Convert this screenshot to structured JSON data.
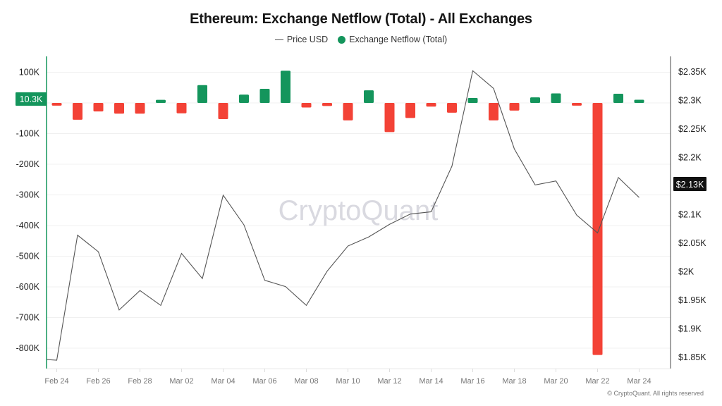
{
  "title": "Ethereum: Exchange Netflow (Total) - All Exchanges",
  "legend": {
    "price_label": "Price USD",
    "netflow_label": "Exchange Netflow (Total)"
  },
  "colors": {
    "positive": "#14955c",
    "negative": "#f34236",
    "price_line": "#555555",
    "left_axis": "#14955c",
    "right_axis": "#666666",
    "grid": "#f0f0f0",
    "watermark": "#d9d9e0"
  },
  "watermark": "CryptoQuant",
  "copyright": "© CryptoQuant. All rights reserved",
  "left_marker": "10.3K",
  "right_marker": "$2.13K",
  "chart_data": {
    "type": "bar+line",
    "title": "Ethereum: Exchange Netflow (Total) - All Exchanges",
    "xlabel": "",
    "ylabel_left": "Exchange Netflow (Total)",
    "ylabel_right": "Price USD",
    "x_tick_labels": [
      "Feb 24",
      "Feb 26",
      "Feb 28",
      "Mar 02",
      "Mar 04",
      "Mar 06",
      "Mar 08",
      "Mar 10",
      "Mar 12",
      "Mar 14",
      "Mar 16",
      "Mar 18",
      "Mar 20",
      "Mar 22",
      "Mar 24"
    ],
    "left_ticks": [
      "100K",
      "0",
      "-100K",
      "-200K",
      "-300K",
      "-400K",
      "-500K",
      "-600K",
      "-700K",
      "-800K"
    ],
    "left_tick_values": [
      100000,
      0,
      -100000,
      -200000,
      -300000,
      -400000,
      -500000,
      -600000,
      -700000,
      -800000
    ],
    "right_ticks": [
      "$2.35K",
      "$2.3K",
      "$2.25K",
      "$2.2K",
      "$2.15K",
      "$2.1K",
      "$2.05K",
      "$2K",
      "$1.95K",
      "$1.9K",
      "$1.85K"
    ],
    "right_tick_values": [
      2350,
      2300,
      2250,
      2200,
      2150,
      2100,
      2050,
      2000,
      1950,
      1900,
      1850
    ],
    "ylim_left": [
      -880000,
      150000
    ],
    "ylim_right": [
      1820,
      2380
    ],
    "legend_position": "top",
    "grid": true,
    "categories": [
      "Feb 24",
      "Feb 25",
      "Feb 26",
      "Feb 27",
      "Feb 28",
      "Mar 01",
      "Mar 02",
      "Mar 03",
      "Mar 04",
      "Mar 05",
      "Mar 06",
      "Mar 07",
      "Mar 08",
      "Mar 09",
      "Mar 10",
      "Mar 11",
      "Mar 12",
      "Mar 13",
      "Mar 14",
      "Mar 15",
      "Mar 16",
      "Mar 17",
      "Mar 18",
      "Mar 19",
      "Mar 20",
      "Mar 21",
      "Mar 22",
      "Mar 23",
      "Mar 24"
    ],
    "series": [
      {
        "name": "Exchange Netflow (Total)",
        "type": "bar",
        "values": [
          -9000,
          -55000,
          -28000,
          -35000,
          -35000,
          10000,
          -34000,
          58000,
          -53000,
          27000,
          46000,
          105000,
          -15000,
          -10000,
          -57000,
          41000,
          -95000,
          -49000,
          -12000,
          -32000,
          16000,
          -57000,
          -25000,
          18000,
          31000,
          -9000,
          -822000,
          30000,
          10300
        ]
      },
      {
        "name": "Price USD",
        "type": "line",
        "values": [
          1845,
          2064,
          2035,
          1933,
          1967,
          1941,
          2032,
          1988,
          2134,
          2082,
          1985,
          1974,
          1941,
          2001,
          2045,
          2061,
          2083,
          2101,
          2105,
          2185,
          2352,
          2321,
          2215,
          2152,
          2159,
          2099,
          2068,
          2165,
          2130
        ]
      }
    ]
  }
}
